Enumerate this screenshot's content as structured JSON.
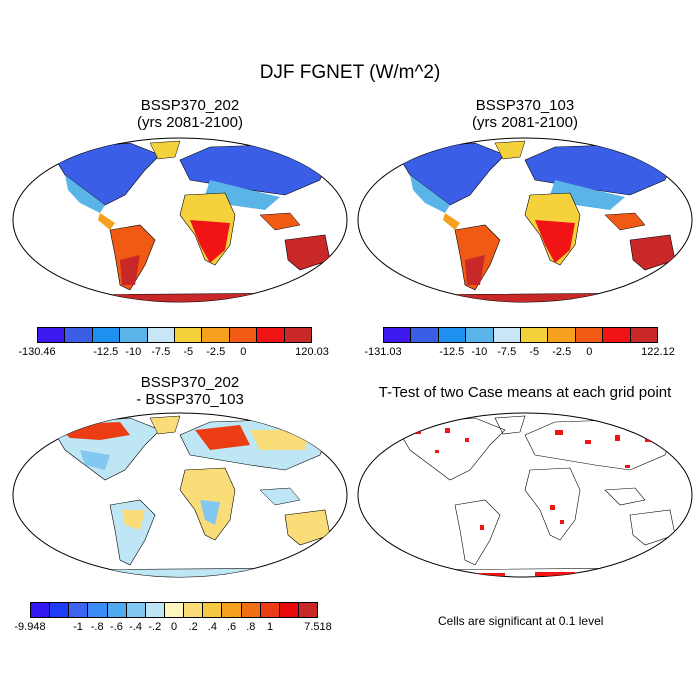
{
  "title": "DJF FGNET (W/m^2)",
  "panels": {
    "tl": {
      "title_line1": "BSSP370_202",
      "title_line2": "(yrs 2081-2100)"
    },
    "tr": {
      "title_line1": "BSSP370_103",
      "title_line2": "(yrs 2081-2100)"
    },
    "bl": {
      "title_line1": "BSSP370_202",
      "title_line2": "- BSSP370_103"
    },
    "br": {
      "title_line1": "T-Test of two Case means at each grid point"
    }
  },
  "colorbars": {
    "tl": {
      "colors": [
        "#3d19f0",
        "#3a5ee6",
        "#1e90f0",
        "#5ab4e8",
        "#c8e6f5",
        "#f5d23c",
        "#f5a01e",
        "#f05a14",
        "#f01414",
        "#c82828"
      ],
      "labels": [
        "-130.46",
        "-12.5",
        "-10",
        "-7.5",
        "-5",
        "-2.5",
        "0",
        "120.03"
      ]
    },
    "tr": {
      "colors": [
        "#3d19f0",
        "#3a5ee6",
        "#1e90f0",
        "#5ab4e8",
        "#c8e6f5",
        "#f5d23c",
        "#f5a01e",
        "#f05a14",
        "#f01414",
        "#c82828"
      ],
      "labels": [
        "-131.03",
        "-12.5",
        "-10",
        "-7.5",
        "-5",
        "-2.5",
        "0",
        "122.12"
      ]
    },
    "bl": {
      "colors": [
        "#3219f0",
        "#1e3cf5",
        "#3c64f0",
        "#3c8cf5",
        "#50aaf0",
        "#82c8f0",
        "#bee6f5",
        "#fff5be",
        "#fadc78",
        "#f5c846",
        "#f5a01e",
        "#f06e14",
        "#eb3c14",
        "#e60a0a",
        "#c82828"
      ],
      "labels": [
        "-9.948",
        "-1",
        "-.8",
        "-.6",
        "-.4",
        "-.2",
        "0",
        ".2",
        ".4",
        ".6",
        ".8",
        "1",
        "7.518"
      ]
    }
  },
  "note": "Cells are significant at 0.1 level",
  "map_fill_colors": {
    "ocean": "#ffffff",
    "coast": "#000000",
    "north_cold": "#3a5ee6",
    "north_cool": "#5ab4e8",
    "mid": "#c8e6f5",
    "warm": "#f5a01e",
    "hot": "#f01414",
    "south_hot": "#c82828",
    "diff_bg": "#bee6f5",
    "diff_warm": "#fadc78",
    "diff_hot": "#eb3c14",
    "diff_cool": "#82c8f0",
    "sig": "#f01414"
  }
}
